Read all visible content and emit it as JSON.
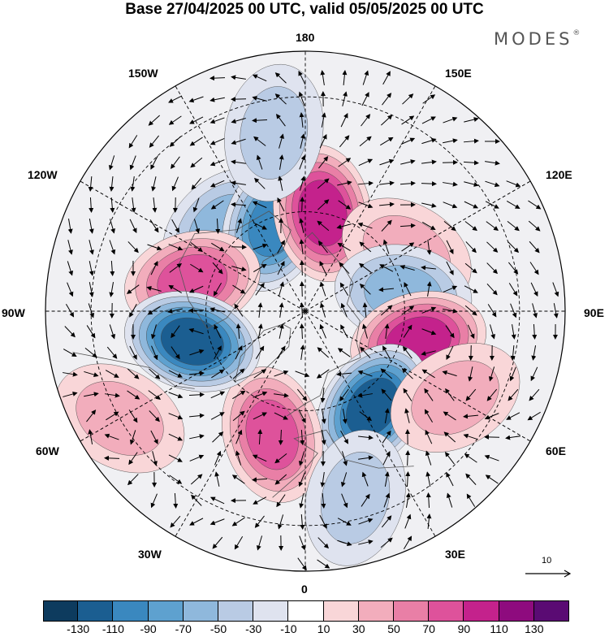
{
  "title": "Base 27/04/2025 00 UTC, valid 05/05/2025 00 UTC",
  "brand": {
    "name": "MODES",
    "mark": "®"
  },
  "longitude_labels": {
    "n180": "180",
    "w150": "150W",
    "e150": "150E",
    "w120": "120W",
    "e120": "120E",
    "w90": "90W",
    "e90": "90E",
    "w60": "60W",
    "e60": "60E",
    "w30": "30W",
    "e30": "30E",
    "s0": "0"
  },
  "reference_vector": {
    "label": "10"
  },
  "colorbar": {
    "colors": [
      "#0d3b5e",
      "#1b5e91",
      "#3a88bf",
      "#5ea1cf",
      "#8fb8dc",
      "#b9cbe4",
      "#dfe3ef",
      "#ffffff",
      "#f9d6d8",
      "#f2adbc",
      "#e97fa6",
      "#de529b",
      "#c4228c",
      "#8e0b7e",
      "#5a0b73"
    ],
    "tick_labels": [
      "-130",
      "-110",
      "-90",
      "-70",
      "-50",
      "-30",
      "-10",
      "10",
      "30",
      "50",
      "70",
      "90",
      "110",
      "130"
    ]
  },
  "map_data": {
    "projection": "north-polar-stereographic",
    "field": "height anomaly (shaded), wind vectors",
    "anomaly_centers": [
      {
        "lon": -135,
        "lat": 55,
        "value": -55
      },
      {
        "lon": -160,
        "lat": 62,
        "value": -90
      },
      {
        "lon": 170,
        "lat": 60,
        "value": 105
      },
      {
        "lon": -170,
        "lat": 38,
        "value": -30
      },
      {
        "lon": 120,
        "lat": 55,
        "value": 45
      },
      {
        "lon": 100,
        "lat": 60,
        "value": -60
      },
      {
        "lon": 75,
        "lat": 55,
        "value": 105
      },
      {
        "lon": 35,
        "lat": 55,
        "value": -110
      },
      {
        "lon": -15,
        "lat": 52,
        "value": 70
      },
      {
        "lon": -105,
        "lat": 55,
        "value": 80
      },
      {
        "lon": -75,
        "lat": 55,
        "value": -120
      },
      {
        "lon": -60,
        "lat": 30,
        "value": 40
      },
      {
        "lon": 15,
        "lat": 35,
        "value": -30
      },
      {
        "lon": 60,
        "lat": 40,
        "value": 40
      }
    ]
  }
}
